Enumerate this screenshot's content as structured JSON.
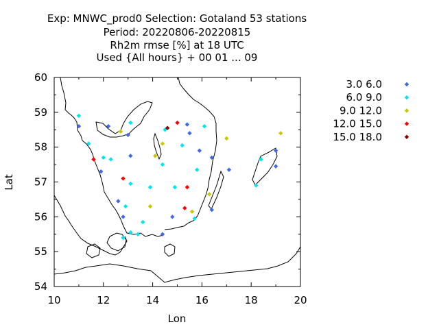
{
  "chart_data": {
    "type": "scatter",
    "title_lines": [
      "Exp: MNWC_prod0   Selection: Gotaland     53 stations",
      "Period: 20220806-20220815",
      "Rh2m rmse [%] at  18 UTC",
      "Used {All hours} + 00 01 ... 09"
    ],
    "xlabel": "Lon",
    "ylabel": "Lat",
    "xlim": [
      10,
      20
    ],
    "ylim": [
      54,
      60
    ],
    "xticks": [
      "10",
      "12",
      "14",
      "16",
      "18",
      "20"
    ],
    "yticks": [
      "54",
      "55",
      "56",
      "57",
      "58",
      "59",
      "60"
    ],
    "legend_position": "right",
    "series": [
      {
        "name": "3.0 6.0",
        "color": "#4169e1",
        "points": [
          [
            11.0,
            58.6
          ],
          [
            12.2,
            58.6
          ],
          [
            13.0,
            58.35
          ],
          [
            15.4,
            58.65
          ],
          [
            15.5,
            58.4
          ],
          [
            15.9,
            57.9
          ],
          [
            13.1,
            57.75
          ],
          [
            11.9,
            57.3
          ],
          [
            16.4,
            57.7
          ],
          [
            17.1,
            57.35
          ],
          [
            19.0,
            57.9
          ],
          [
            19.0,
            57.45
          ],
          [
            12.6,
            56.45
          ],
          [
            12.8,
            56.0
          ],
          [
            14.8,
            56.0
          ],
          [
            16.4,
            56.2
          ],
          [
            14.4,
            55.5
          ]
        ]
      },
      {
        "name": "6.0 9.0",
        "color": "#00e5ee",
        "points": [
          [
            11.0,
            58.9
          ],
          [
            13.1,
            58.7
          ],
          [
            14.5,
            58.5
          ],
          [
            16.1,
            58.6
          ],
          [
            15.2,
            58.05
          ],
          [
            11.4,
            58.1
          ],
          [
            12.0,
            57.7
          ],
          [
            12.3,
            57.65
          ],
          [
            14.4,
            57.5
          ],
          [
            15.8,
            57.35
          ],
          [
            13.1,
            56.95
          ],
          [
            13.9,
            56.85
          ],
          [
            14.9,
            56.85
          ],
          [
            12.9,
            56.3
          ],
          [
            13.6,
            55.85
          ],
          [
            15.7,
            55.95
          ],
          [
            12.8,
            55.4
          ],
          [
            13.1,
            55.55
          ],
          [
            13.4,
            55.5
          ],
          [
            18.4,
            57.65
          ],
          [
            18.2,
            56.9
          ]
        ]
      },
      {
        "name": "9.0 12.0",
        "color": "#c8c800",
        "points": [
          [
            12.7,
            58.45
          ],
          [
            14.4,
            58.1
          ],
          [
            14.1,
            57.75
          ],
          [
            17.0,
            58.25
          ],
          [
            19.2,
            58.4
          ],
          [
            13.9,
            56.3
          ],
          [
            16.3,
            56.65
          ],
          [
            15.6,
            56.15
          ]
        ]
      },
      {
        "name": "12.0 15.0",
        "color": "#ff0000",
        "points": [
          [
            15.0,
            58.7
          ],
          [
            11.6,
            57.65
          ],
          [
            12.8,
            57.1
          ],
          [
            15.4,
            56.85
          ],
          [
            15.3,
            56.25
          ]
        ]
      },
      {
        "name": "15.0 18.0",
        "color": "#8b0000",
        "points": [
          [
            14.6,
            58.55
          ]
        ]
      }
    ]
  }
}
